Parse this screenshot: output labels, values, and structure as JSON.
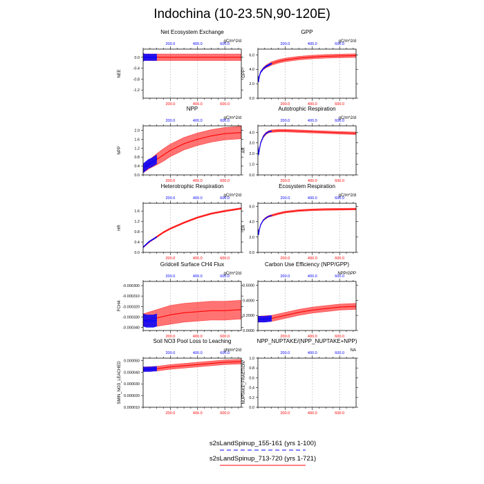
{
  "title": "Indochina (10-23.5N,90-120E)",
  "chart_data": [
    {
      "type": "line",
      "id": "nee",
      "title": "Net Ecosystem Exchange",
      "ylabel": "NEE",
      "units": "gC/m^2/d",
      "ylim": [
        -1.5,
        0.3
      ],
      "yticks": [
        0.0,
        -0.4,
        -0.8,
        -1.2
      ],
      "ytick_labels": [
        "0.0",
        "-0.4",
        "-0.8",
        "-1.2"
      ],
      "xlim": [
        0,
        721
      ],
      "xticks": [
        200,
        400,
        600
      ],
      "xtick_labels": [
        "200.0",
        "400.0",
        "600.0"
      ],
      "xticks_top": [
        200,
        400,
        600
      ],
      "xtick_top_labels": [
        "200.0",
        "400.0",
        "600.0"
      ],
      "series": [
        {
          "name": "s2sLandSpinup_155-161 (yrs 1-100)",
          "color": "#0000ff",
          "x": [
            1,
            10,
            25,
            50,
            75,
            100
          ],
          "mean": [
            0.0,
            0.0,
            0.0,
            0.0,
            0.0,
            0.0
          ],
          "spread": [
            0.15,
            0.12,
            0.12,
            0.12,
            0.12,
            0.12
          ]
        },
        {
          "name": "s2sLandSpinup_713-720 (yrs 1-721)",
          "color": "#ff0000",
          "x": [
            1,
            100,
            200,
            300,
            400,
            500,
            600,
            721
          ],
          "mean": [
            0.0,
            0.0,
            0.0,
            0.0,
            0.0,
            0.0,
            0.0,
            0.0
          ],
          "spread": [
            0.12,
            0.12,
            0.12,
            0.12,
            0.12,
            0.12,
            0.12,
            0.12
          ]
        }
      ]
    },
    {
      "type": "line",
      "id": "gpp",
      "title": "GPP",
      "ylabel": "GPP",
      "units": "gC/m^2/d",
      "ylim": [
        0,
        6.8
      ],
      "yticks": [
        0,
        2,
        4,
        6
      ],
      "ytick_labels": [
        "0.0",
        "2.0",
        "4.0",
        "6.0"
      ],
      "xlim": [
        0,
        721
      ],
      "xticks": [
        200,
        400,
        600
      ],
      "xtick_labels": [
        "200.0",
        "400.0",
        "600.0"
      ],
      "xticks_top": [
        200,
        400,
        600
      ],
      "xtick_top_labels": [
        "200.0",
        "400.0",
        "600.0"
      ],
      "series": [
        {
          "name": "s2sLandSpinup_155-161 (yrs 1-100)",
          "color": "#0000ff",
          "x": [
            1,
            5,
            10,
            20,
            40,
            60,
            80,
            100
          ],
          "mean": [
            3.0,
            2.3,
            3.0,
            3.6,
            4.1,
            4.4,
            4.6,
            4.8
          ],
          "spread": [
            0.1,
            0.1,
            0.1,
            0.1,
            0.1,
            0.1,
            0.1,
            0.1
          ]
        },
        {
          "name": "s2sLandSpinup_713-720 (yrs 1-721)",
          "color": "#ff0000",
          "x": [
            1,
            5,
            10,
            20,
            40,
            60,
            80,
            100,
            150,
            200,
            300,
            400,
            500,
            600,
            721
          ],
          "mean": [
            3.0,
            2.3,
            3.0,
            3.6,
            4.1,
            4.4,
            4.6,
            4.8,
            5.1,
            5.3,
            5.55,
            5.7,
            5.8,
            5.85,
            5.9
          ],
          "spread": [
            0.1,
            0.1,
            0.1,
            0.1,
            0.15,
            0.2,
            0.22,
            0.25,
            0.25,
            0.25,
            0.25,
            0.25,
            0.25,
            0.25,
            0.25
          ]
        }
      ]
    },
    {
      "type": "line",
      "id": "npp",
      "title": "NPP",
      "ylabel": "NPP",
      "units": "gC/m^2/d",
      "ylim": [
        0,
        2.2
      ],
      "yticks": [
        0,
        0.4,
        0.8,
        1.2,
        1.6,
        2.0
      ],
      "ytick_labels": [
        "0.0",
        "0.4",
        "0.8",
        "1.2",
        "1.6",
        "2.0"
      ],
      "xlim": [
        0,
        721
      ],
      "xticks": [
        200,
        400,
        600
      ],
      "xtick_labels": [
        "200.0",
        "400.0",
        "600.0"
      ],
      "xticks_top": [
        200,
        400,
        600
      ],
      "xtick_top_labels": [
        "200.0",
        "400.0",
        "600.0"
      ],
      "series": [
        {
          "name": "s2sLandSpinup_155-161 (yrs 1-100)",
          "color": "#0000ff",
          "x": [
            1,
            20,
            40,
            60,
            80,
            100
          ],
          "mean": [
            0.3,
            0.4,
            0.5,
            0.55,
            0.62,
            0.7
          ],
          "spread": [
            0.2,
            0.2,
            0.2,
            0.2,
            0.2,
            0.2
          ]
        },
        {
          "name": "s2sLandSpinup_713-720 (yrs 1-721)",
          "color": "#ff0000",
          "x": [
            1,
            50,
            100,
            150,
            200,
            300,
            400,
            500,
            600,
            721
          ],
          "mean": [
            0.3,
            0.5,
            0.7,
            0.9,
            1.1,
            1.4,
            1.6,
            1.75,
            1.85,
            1.9
          ],
          "spread": [
            0.2,
            0.2,
            0.25,
            0.28,
            0.28,
            0.28,
            0.28,
            0.28,
            0.28,
            0.28
          ]
        }
      ]
    },
    {
      "type": "line",
      "id": "ar",
      "title": "Autotrophic Respiration",
      "ylabel": "AR",
      "units": "gC/m^2/d",
      "ylim": [
        0,
        4.6
      ],
      "yticks": [
        0,
        1,
        2,
        3,
        4
      ],
      "ytick_labels": [
        "0.0",
        "1.0",
        "2.0",
        "3.0",
        "4.0"
      ],
      "xlim": [
        0,
        721
      ],
      "xticks": [
        200,
        400,
        600
      ],
      "xtick_labels": [
        "200.0",
        "400.0",
        "600.0"
      ],
      "xticks_top": [
        200,
        400,
        600
      ],
      "xtick_top_labels": [
        "200.0",
        "400.0",
        "600.0"
      ],
      "series": [
        {
          "name": "s2sLandSpinup_155-161 (yrs 1-100)",
          "color": "#0000ff",
          "x": [
            1,
            5,
            10,
            20,
            40,
            60,
            80,
            100
          ],
          "mean": [
            2.6,
            1.9,
            2.3,
            3.0,
            3.6,
            3.9,
            4.05,
            4.1
          ],
          "spread": [
            0.05,
            0.05,
            0.05,
            0.05,
            0.05,
            0.05,
            0.05,
            0.05
          ]
        },
        {
          "name": "s2sLandSpinup_713-720 (yrs 1-721)",
          "color": "#ff0000",
          "x": [
            1,
            5,
            10,
            20,
            40,
            60,
            80,
            100,
            150,
            200,
            300,
            400,
            500,
            600,
            721
          ],
          "mean": [
            2.6,
            1.9,
            2.3,
            3.0,
            3.6,
            3.9,
            4.05,
            4.1,
            4.15,
            4.15,
            4.1,
            4.05,
            4.0,
            3.95,
            3.9
          ],
          "spread": [
            0.05,
            0.05,
            0.05,
            0.05,
            0.1,
            0.1,
            0.1,
            0.12,
            0.12,
            0.12,
            0.12,
            0.12,
            0.12,
            0.12,
            0.12
          ]
        }
      ]
    },
    {
      "type": "line",
      "id": "hr",
      "title": "Heterotrophic Respiration",
      "ylabel": "HR",
      "units": "gC/m^2/d",
      "ylim": [
        0,
        1.9
      ],
      "yticks": [
        0,
        0.4,
        0.8,
        1.2,
        1.6
      ],
      "ytick_labels": [
        "0.0",
        "0.4",
        "0.8",
        "1.2",
        "1.6"
      ],
      "xlim": [
        0,
        721
      ],
      "xticks": [
        200,
        400,
        600
      ],
      "xtick_labels": [
        "200.0",
        "400.0",
        "600.0"
      ],
      "xticks_top": [
        200,
        400,
        600
      ],
      "xtick_top_labels": [
        "200.0",
        "400.0",
        "600.0"
      ],
      "series": [
        {
          "name": "s2sLandSpinup_155-161 (yrs 1-100)",
          "color": "#0000ff",
          "x": [
            1,
            20,
            40,
            60,
            80,
            100
          ],
          "mean": [
            0.2,
            0.3,
            0.4,
            0.47,
            0.53,
            0.6
          ],
          "spread": [
            0.02,
            0.02,
            0.02,
            0.02,
            0.02,
            0.02
          ]
        },
        {
          "name": "s2sLandSpinup_713-720 (yrs 1-721)",
          "color": "#ff0000",
          "x": [
            1,
            50,
            100,
            150,
            200,
            300,
            400,
            500,
            600,
            721
          ],
          "mean": [
            0.2,
            0.42,
            0.6,
            0.78,
            0.92,
            1.15,
            1.35,
            1.5,
            1.6,
            1.7
          ],
          "spread": [
            0.02,
            0.02,
            0.03,
            0.03,
            0.03,
            0.03,
            0.03,
            0.03,
            0.03,
            0.03
          ]
        }
      ]
    },
    {
      "type": "line",
      "id": "er",
      "title": "Ecosystem Respiration",
      "ylabel": "ER",
      "units": "gC/m^2/d",
      "ylim": [
        0,
        6.4
      ],
      "yticks": [
        0,
        2,
        4,
        6
      ],
      "ytick_labels": [
        "0.0",
        "2.0",
        "4.0",
        "6.0"
      ],
      "xlim": [
        0,
        721
      ],
      "xticks": [
        200,
        400,
        600
      ],
      "xtick_labels": [
        "200.0",
        "400.0",
        "600.0"
      ],
      "xticks_top": [
        200,
        400,
        600
      ],
      "xtick_top_labels": [
        "200.0",
        "400.0",
        "600.0"
      ],
      "series": [
        {
          "name": "s2sLandSpinup_155-161 (yrs 1-100)",
          "color": "#0000ff",
          "x": [
            1,
            5,
            10,
            20,
            40,
            60,
            80,
            100
          ],
          "mean": [
            3.0,
            2.3,
            2.9,
            3.6,
            4.2,
            4.5,
            4.7,
            4.8
          ],
          "spread": [
            0.05,
            0.05,
            0.05,
            0.05,
            0.05,
            0.05,
            0.05,
            0.05
          ]
        },
        {
          "name": "s2sLandSpinup_713-720 (yrs 1-721)",
          "color": "#ff0000",
          "x": [
            1,
            5,
            10,
            20,
            40,
            60,
            80,
            100,
            150,
            200,
            300,
            400,
            500,
            600,
            721
          ],
          "mean": [
            3.0,
            2.3,
            2.9,
            3.6,
            4.2,
            4.5,
            4.7,
            4.8,
            5.05,
            5.25,
            5.45,
            5.55,
            5.6,
            5.62,
            5.65
          ],
          "spread": [
            0.05,
            0.05,
            0.05,
            0.05,
            0.08,
            0.1,
            0.1,
            0.12,
            0.12,
            0.12,
            0.12,
            0.12,
            0.12,
            0.12,
            0.12
          ]
        }
      ]
    },
    {
      "type": "line",
      "id": "fch4",
      "title": "Gridcell Surface CH4 Flux",
      "ylabel": "FCH4",
      "units": "gC/m^2/d",
      "ylim": [
        -0.000343,
        -0.000296
      ],
      "yticks": [
        -0.0003,
        -0.00031,
        -0.00032,
        -0.00033,
        -0.00034
      ],
      "ytick_labels": [
        "-0.000300",
        "-0.000310",
        "-0.000320",
        "-0.000330",
        "-0.000340"
      ],
      "xlim": [
        0,
        721
      ],
      "xticks": [
        200,
        400,
        600
      ],
      "xtick_labels": [
        "200.0",
        "400.0",
        "600.0"
      ],
      "xticks_top": [
        200,
        400,
        600
      ],
      "xtick_top_labels": [
        "200.0",
        "400.0",
        "600.0"
      ],
      "series": [
        {
          "name": "s2sLandSpinup_155-161 (yrs 1-100)",
          "color": "#0000ff",
          "x": [
            1,
            25,
            50,
            75,
            100
          ],
          "mean": [
            -0.000333,
            -0.000334,
            -0.000334,
            -0.000334,
            -0.000333
          ],
          "spread": [
            6e-06,
            6e-06,
            6e-06,
            6e-06,
            6e-06
          ]
        },
        {
          "name": "s2sLandSpinup_713-720 (yrs 1-721)",
          "color": "#ff0000",
          "x": [
            1,
            100,
            200,
            300,
            400,
            500,
            600,
            721
          ],
          "mean": [
            -0.000333,
            -0.000331,
            -0.000328,
            -0.000326,
            -0.000325,
            -0.000324,
            -0.000324,
            -0.000323
          ],
          "spread": [
            6e-06,
            8e-06,
            9e-06,
            9e-06,
            9e-06,
            9e-06,
            9e-06,
            9e-06
          ]
        }
      ]
    },
    {
      "type": "line",
      "id": "cue",
      "title": "Carbon Use Efficiency (NPP/GPP)",
      "ylabel": "",
      "units": "NPP/GPP",
      "ylim": [
        0,
        0.65
      ],
      "yticks": [
        0,
        0.2,
        0.4,
        0.6
      ],
      "ytick_labels": [
        "0.0000",
        "0.2000",
        "0.4000",
        "0.6000"
      ],
      "xlim": [
        0,
        721
      ],
      "xticks": [
        200,
        400,
        600
      ],
      "xtick_labels": [
        "200.0",
        "400.0",
        "600.0"
      ],
      "xticks_top": [
        200,
        400,
        600
      ],
      "xtick_top_labels": [
        "200.0",
        "400.0",
        "600.0"
      ],
      "series": [
        {
          "name": "s2sLandSpinup_155-161 (yrs 1-100)",
          "color": "#0000ff",
          "x": [
            1,
            25,
            50,
            75,
            100
          ],
          "mean": [
            0.15,
            0.15,
            0.15,
            0.155,
            0.16
          ],
          "spread": [
            0.04,
            0.04,
            0.04,
            0.04,
            0.04
          ]
        },
        {
          "name": "s2sLandSpinup_713-720 (yrs 1-721)",
          "color": "#ff0000",
          "x": [
            1,
            100,
            200,
            300,
            400,
            500,
            600,
            721
          ],
          "mean": [
            0.15,
            0.16,
            0.2,
            0.24,
            0.27,
            0.29,
            0.31,
            0.32
          ],
          "spread": [
            0.04,
            0.04,
            0.04,
            0.04,
            0.04,
            0.04,
            0.04,
            0.04
          ]
        }
      ]
    },
    {
      "type": "line",
      "id": "smin",
      "title": "Soil NO3 Pool Loss to Leaching",
      "ylabel": "SMIN_NO3_LEACHED",
      "units": "gN/m^2/d",
      "ylim": [
        1e-05,
        5.2e-05
      ],
      "yticks": [
        1e-05,
        2e-05,
        3e-05,
        4e-05,
        5e-05
      ],
      "ytick_labels": [
        "0.000010",
        "0.000020",
        "0.000030",
        "0.000040",
        "0.000050"
      ],
      "xlim": [
        0,
        721
      ],
      "xticks": [
        200,
        400,
        600
      ],
      "xtick_labels": [
        "200.0",
        "400.0",
        "600.0"
      ],
      "xticks_top": [
        200,
        400,
        600
      ],
      "xtick_top_labels": [
        "200.0",
        "400.0",
        "600.0"
      ],
      "series": [
        {
          "name": "s2sLandSpinup_155-161 (yrs 1-100)",
          "color": "#0000ff",
          "x": [
            1,
            25,
            50,
            75,
            100
          ],
          "mean": [
            4.25e-05,
            4.25e-05,
            4.25e-05,
            4.28e-05,
            4.3e-05
          ],
          "spread": [
            2e-06,
            2e-06,
            2e-06,
            2e-06,
            2e-06
          ]
        },
        {
          "name": "s2sLandSpinup_713-720 (yrs 1-721)",
          "color": "#ff0000",
          "x": [
            1,
            100,
            200,
            300,
            400,
            500,
            600,
            721
          ],
          "mean": [
            4.25e-05,
            4.3e-05,
            4.45e-05,
            4.55e-05,
            4.65e-05,
            4.75e-05,
            4.85e-05,
            4.9e-05
          ],
          "spread": [
            2e-06,
            2e-06,
            2e-06,
            2e-06,
            2e-06,
            2e-06,
            2e-06,
            2e-06
          ]
        }
      ]
    },
    {
      "type": "line",
      "id": "nuptake",
      "title": "NPP_NUPTAKE/(NPP_NUPTAKE+NPP)",
      "ylabel": "NUPTAKE_FRACTION",
      "units": "NA",
      "ylim": [
        0,
        1.0
      ],
      "yticks": [
        0,
        0.2,
        0.4,
        0.6,
        0.8,
        1.0
      ],
      "ytick_labels": [
        "0.0",
        "0.2",
        "0.4",
        "0.6",
        "0.8",
        "1.0"
      ],
      "xlim": [
        0,
        721
      ],
      "xticks": [
        200,
        400,
        600
      ],
      "xtick_labels": [
        "200.0",
        "400.0",
        "600.0"
      ],
      "xticks_top": [
        200,
        400,
        600
      ],
      "xtick_top_labels": [
        "200.0",
        "400.0",
        "600.0"
      ],
      "series": []
    }
  ],
  "legend": [
    {
      "label": "s2sLandSpinup_155-161 (yrs 1-100)",
      "color": "#0000ff",
      "style": "dashed"
    },
    {
      "label": "s2sLandSpinup_713-720 (yrs 1-721)",
      "color": "#ff0000",
      "style": "solid"
    }
  ]
}
